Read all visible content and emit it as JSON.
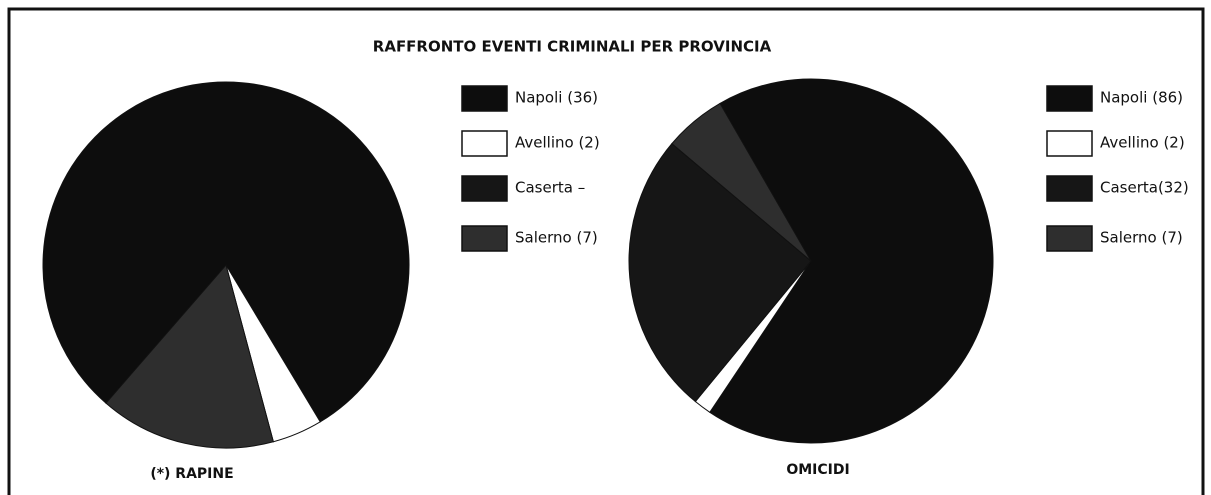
{
  "title": "RAFFRONTO EVENTI CRIMINALI PER PROVINCIA",
  "chart_data": [
    {
      "type": "pie",
      "label": "(*) RAPINE",
      "categories": [
        "Napoli  (36)",
        "Avellino (2)",
        "Caserta  –",
        "Salerno (7)"
      ],
      "values": [
        36,
        2,
        null,
        7
      ],
      "colors": [
        "#0d0d0d",
        "#ffffff",
        "#161616",
        "#2e2e2e"
      ]
    },
    {
      "type": "pie",
      "label": "OMICIDI",
      "categories": [
        "Napoli (86)",
        "Avellino (2)",
        "Caserta(32)",
        "Salerno  (7)"
      ],
      "values": [
        86,
        2,
        32,
        7
      ],
      "colors": [
        "#0d0d0d",
        "#ffffff",
        "#161616",
        "#2e2e2e"
      ]
    }
  ]
}
